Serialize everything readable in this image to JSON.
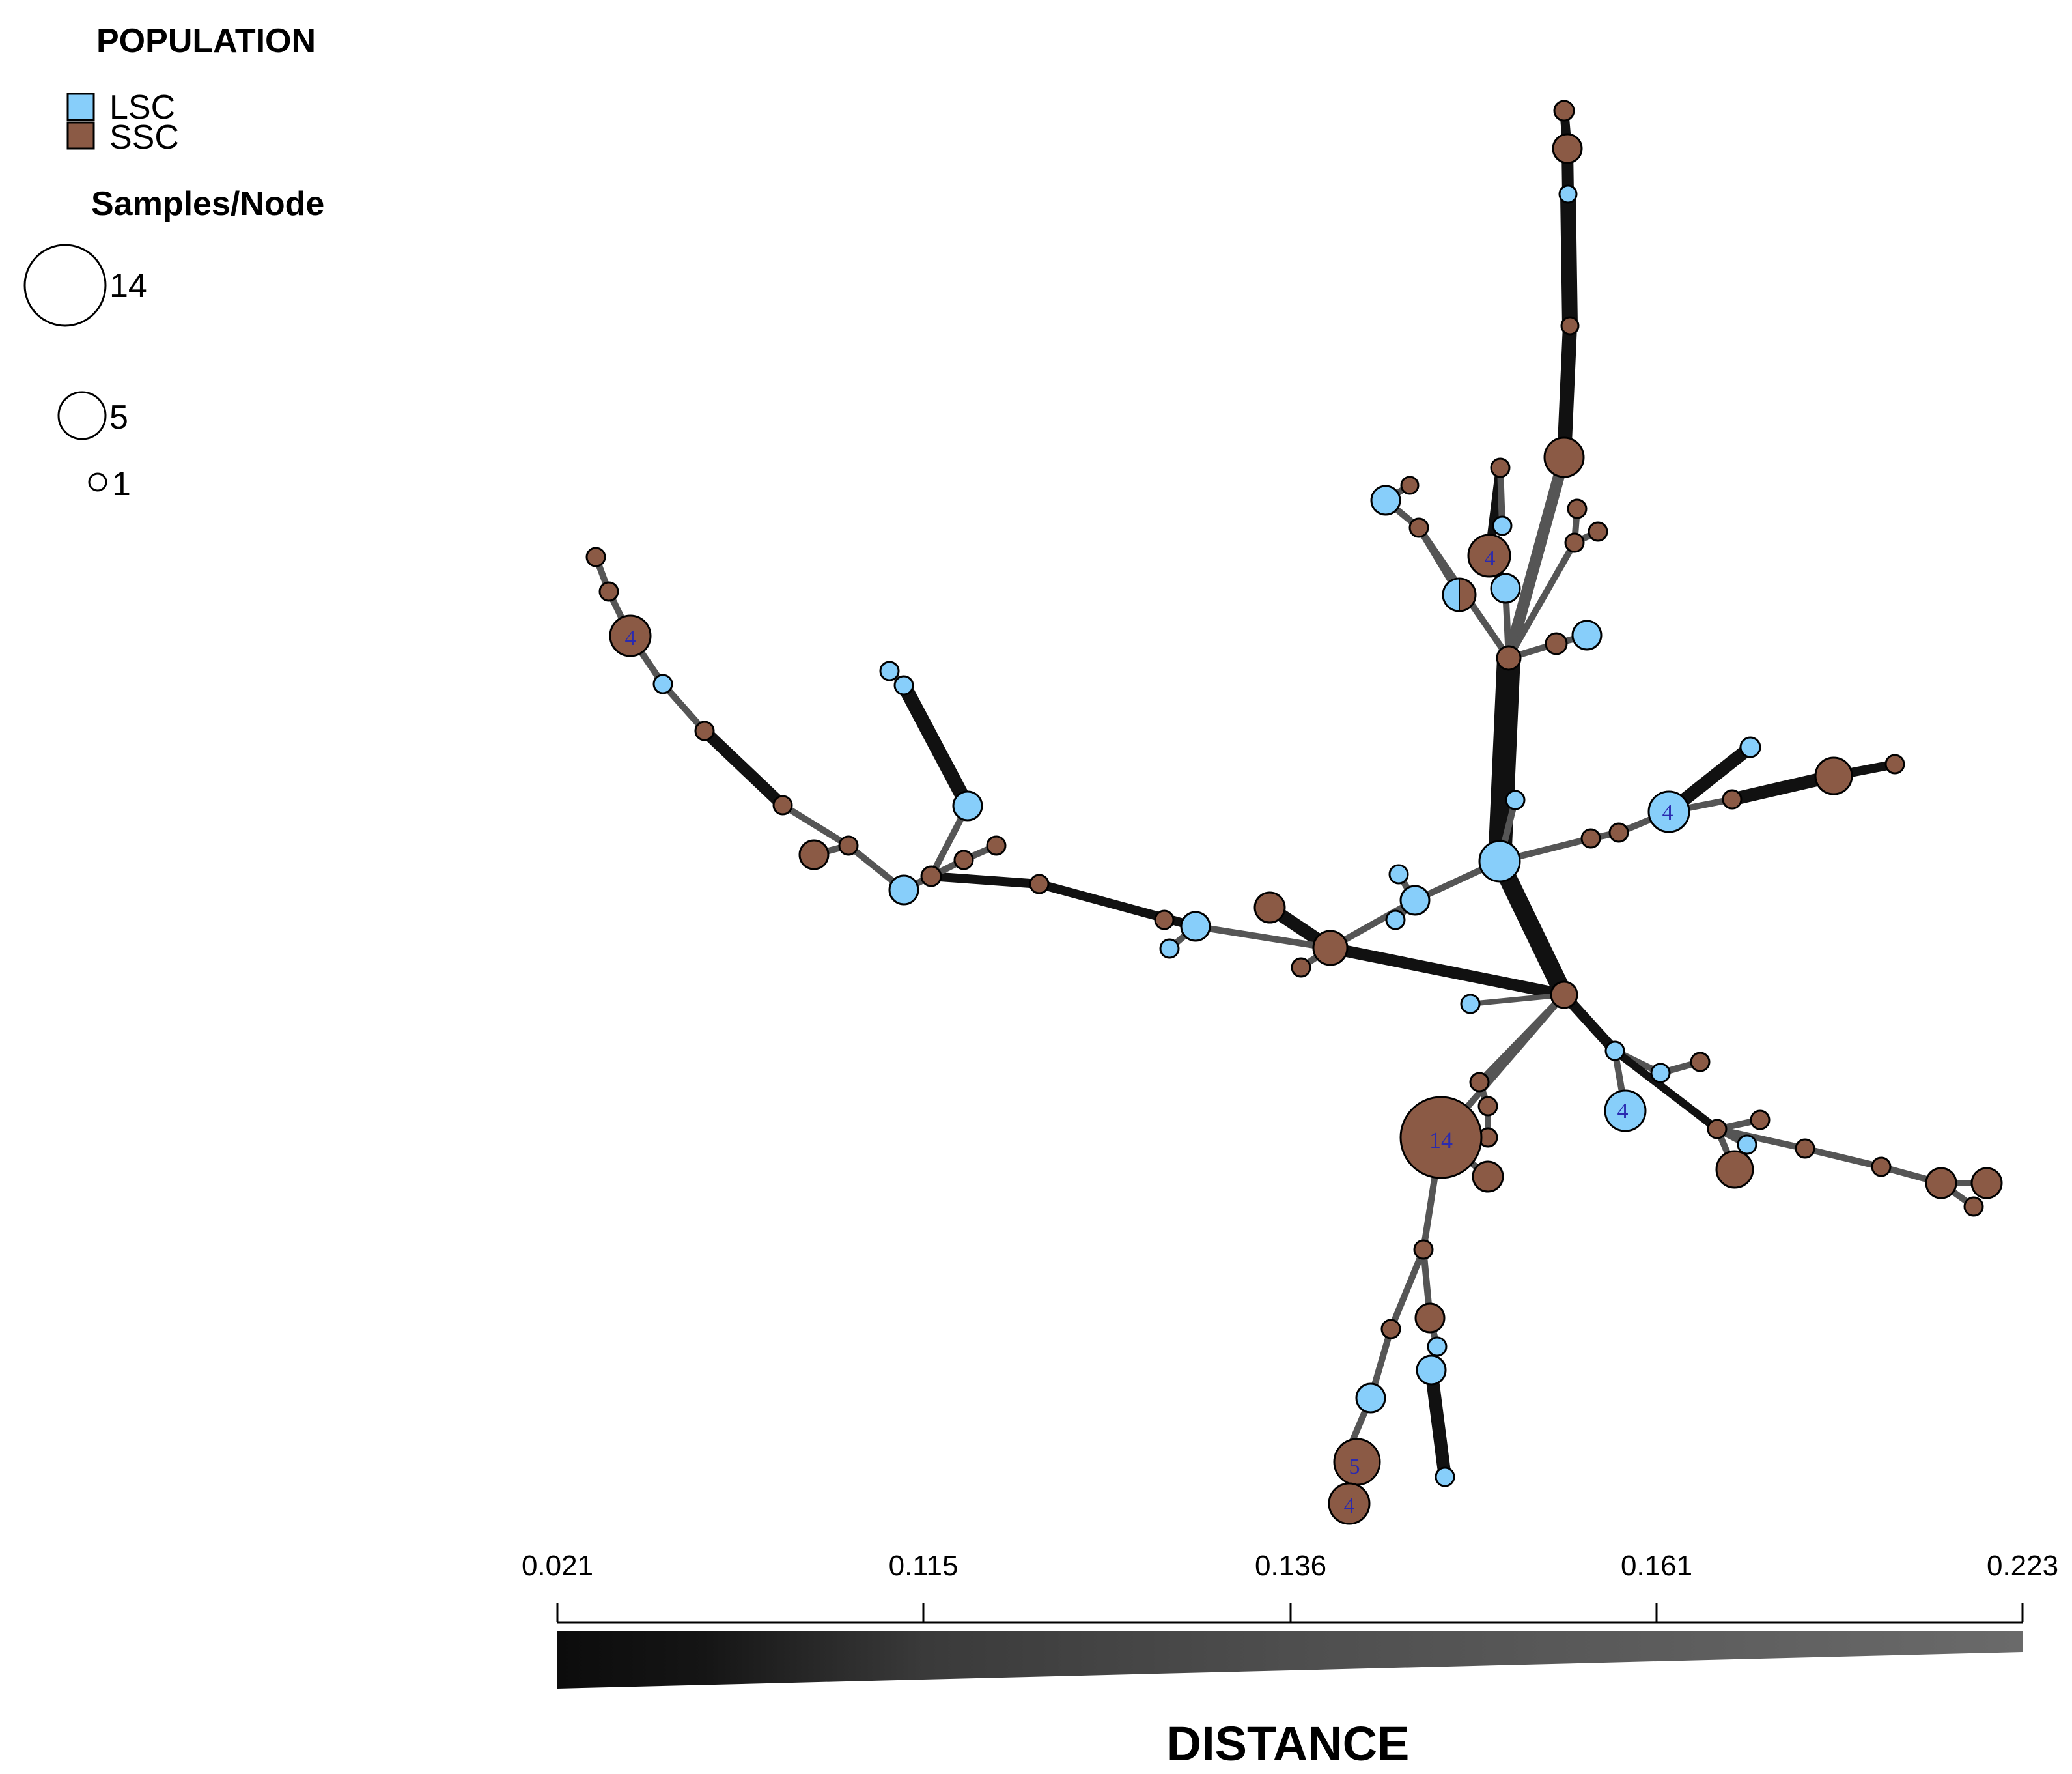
{
  "legend": {
    "population_title": "POPULATION",
    "populations": [
      {
        "label": "LSC",
        "color": "#87CEFA"
      },
      {
        "label": "SSC",
        "color": "#8B5A45"
      }
    ],
    "size_title": "Samples/Node",
    "sizes": [
      {
        "label": "14",
        "samples": 14
      },
      {
        "label": "5",
        "samples": 5
      },
      {
        "label": "1",
        "samples": 1
      }
    ]
  },
  "scale": {
    "title": "DISTANCE",
    "ticks": [
      "0.021",
      "0.115",
      "0.136",
      "0.161",
      "0.223"
    ]
  },
  "node_labels": {
    "n_top_ssc4": "4",
    "n_right_lsc4": "4",
    "n_big14": "14",
    "n_lower_lsc4": "4",
    "n_left_ssc4": "4",
    "n_bottom_5": "5",
    "n_bottom_4": "4"
  },
  "colors": {
    "lsc": "#87CEFA",
    "ssc": "#8B5A45",
    "edge_dark": "#111111",
    "edge_light": "#555555"
  }
}
